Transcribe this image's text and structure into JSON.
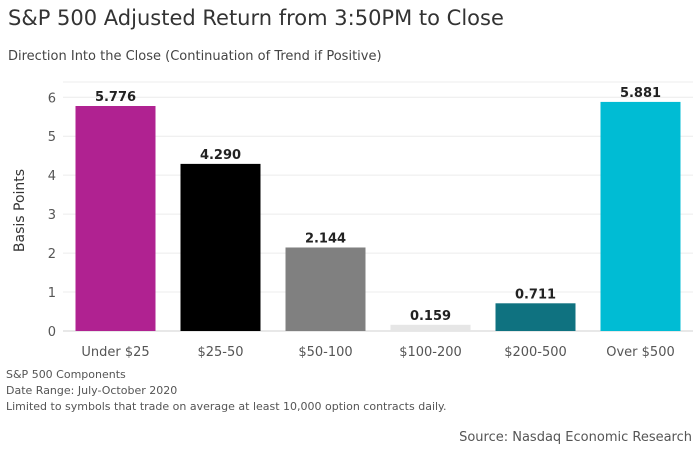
{
  "chart_data": {
    "type": "bar",
    "title": "S&P 500 Adjusted Return from 3:50PM to Close",
    "subtitle": "Direction Into the Close (Continuation of Trend if Positive)",
    "xlabel": "",
    "ylabel": "Basis Points",
    "categories": [
      "Under $25",
      "$25-50",
      "$50-100",
      "$100-200",
      "$200-500",
      "Over $500"
    ],
    "values": [
      5.776,
      4.29,
      2.144,
      0.159,
      0.711,
      5.881
    ],
    "value_labels": [
      "5.776",
      "4.290",
      "2.144",
      "0.159",
      "0.711",
      "5.881"
    ],
    "colors": [
      "#b02291",
      "#000000",
      "#808080",
      "#e6e6e6",
      "#0f7280",
      "#00bcd4"
    ],
    "ylim": [
      0,
      6.3
    ],
    "yticks": [
      0,
      1,
      2,
      3,
      4,
      5,
      6
    ],
    "grid": true
  },
  "footer": {
    "notes": [
      "S&P 500 Components",
      "Date Range: July-October 2020",
      "Limited to symbols that trade on average at least 10,000 option contracts daily."
    ],
    "source": "Source: Nasdaq Economic Research"
  }
}
